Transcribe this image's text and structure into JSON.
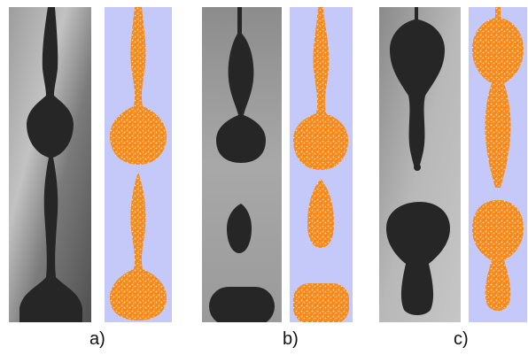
{
  "labels": {
    "a": "a)",
    "b": "b)",
    "c": "c)"
  },
  "colors": {
    "simulation_bg": "#c4c9f9",
    "simulation_fluid": "#f28a1f",
    "simulation_speckle": "#fde0b0",
    "experiment_fluid": "#262626"
  }
}
